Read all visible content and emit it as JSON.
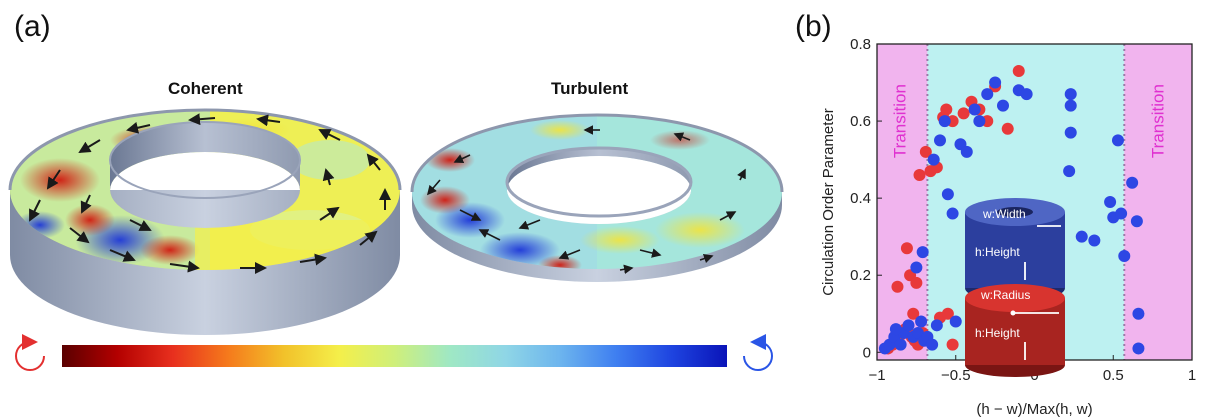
{
  "panel_a": {
    "label": "(a)",
    "coherent_title": "Coherent",
    "turbulent_title": "Turbulent",
    "colorbar_stops": [
      "#5a0000",
      "#b30000",
      "#e8301e",
      "#f57a1c",
      "#f2c12a",
      "#f4ef4a",
      "#cfef7a",
      "#9fe8c4",
      "#8fd6e6",
      "#6cb4ee",
      "#3f7ff0",
      "#1e44e0",
      "#0a14b8"
    ],
    "ccw_arrow_color": "#e33030",
    "cw_arrow_color": "#2a55e6"
  },
  "panel_b": {
    "label": "(b)",
    "inset_disk": {
      "w_label": "w:Width",
      "h_label": "h:Height",
      "color": "#2c3f9e"
    },
    "inset_cylinder": {
      "w_label": "w:Radius",
      "h_label": "h:Height",
      "color": "#d8342f"
    }
  },
  "chart_data": {
    "type": "scatter",
    "xlabel": "(h − w)/Max(h, w)",
    "ylabel": "Circulation Order Parameter",
    "xlim": [
      -1,
      1
    ],
    "ylim": [
      -0.02,
      0.8
    ],
    "x_ticks": [
      -1,
      -0.5,
      0,
      0.5,
      1
    ],
    "x_tick_labels": [
      "−1",
      "−0.5",
      "0",
      "0.5",
      "1"
    ],
    "y_ticks": [
      0,
      0.2,
      0.4,
      0.6,
      0.8
    ],
    "y_tick_labels": [
      "0",
      "0.2",
      "0.4",
      "0.6",
      "0.8"
    ],
    "annotations": [
      {
        "text": "Transition",
        "x": -0.82,
        "y": 0.6
      },
      {
        "text": "Transition",
        "x": 0.82,
        "y": 0.6
      }
    ],
    "transition_lines": [
      -0.68,
      0.57
    ],
    "regions": [
      {
        "from": -1,
        "to": -0.68,
        "color": "#f1b4ee"
      },
      {
        "from": -0.68,
        "to": 0.57,
        "color": "#bdf1f1"
      },
      {
        "from": 0.57,
        "to": 1,
        "color": "#f1b4ee"
      }
    ],
    "series": [
      {
        "color": "#e8393a",
        "points": [
          [
            -0.93,
            0.01
          ],
          [
            -0.91,
            0.02
          ],
          [
            -0.88,
            0.03
          ],
          [
            -0.86,
            0.04
          ],
          [
            -0.84,
            0.05
          ],
          [
            -0.82,
            0.06
          ],
          [
            -0.8,
            0.05
          ],
          [
            -0.78,
            0.04
          ],
          [
            -0.76,
            0.03
          ],
          [
            -0.74,
            0.02
          ],
          [
            -0.87,
            0.17
          ],
          [
            -0.81,
            0.27
          ],
          [
            -0.79,
            0.2
          ],
          [
            -0.75,
            0.18
          ],
          [
            -0.73,
            0.46
          ],
          [
            -0.69,
            0.52
          ],
          [
            -0.66,
            0.47
          ],
          [
            -0.62,
            0.48
          ],
          [
            -0.58,
            0.61
          ],
          [
            -0.56,
            0.63
          ],
          [
            -0.52,
            0.6
          ],
          [
            -0.45,
            0.62
          ],
          [
            -0.4,
            0.65
          ],
          [
            -0.35,
            0.63
          ],
          [
            -0.3,
            0.6
          ],
          [
            -0.25,
            0.69
          ],
          [
            -0.17,
            0.58
          ],
          [
            -0.1,
            0.73
          ],
          [
            -0.9,
            0.02
          ],
          [
            -0.77,
            0.1
          ],
          [
            -0.71,
            0.05
          ],
          [
            -0.6,
            0.09
          ],
          [
            -0.55,
            0.1
          ],
          [
            -0.52,
            0.02
          ]
        ]
      },
      {
        "color": "#2d47e4",
        "points": [
          [
            -0.95,
            0.01
          ],
          [
            -0.92,
            0.02
          ],
          [
            -0.89,
            0.04
          ],
          [
            -0.85,
            0.02
          ],
          [
            -0.83,
            0.05
          ],
          [
            -0.8,
            0.07
          ],
          [
            -0.77,
            0.04
          ],
          [
            -0.74,
            0.05
          ],
          [
            -0.72,
            0.08
          ],
          [
            -0.7,
            0.03
          ],
          [
            -0.68,
            0.04
          ],
          [
            -0.75,
            0.22
          ],
          [
            -0.71,
            0.26
          ],
          [
            -0.64,
            0.5
          ],
          [
            -0.6,
            0.55
          ],
          [
            -0.57,
            0.6
          ],
          [
            -0.55,
            0.41
          ],
          [
            -0.52,
            0.36
          ],
          [
            -0.5,
            0.08
          ],
          [
            -0.47,
            0.54
          ],
          [
            -0.43,
            0.52
          ],
          [
            -0.38,
            0.63
          ],
          [
            -0.35,
            0.6
          ],
          [
            -0.3,
            0.67
          ],
          [
            -0.25,
            0.7
          ],
          [
            -0.2,
            0.64
          ],
          [
            -0.1,
            0.68
          ],
          [
            -0.05,
            0.67
          ],
          [
            0.23,
            0.67
          ],
          [
            0.23,
            0.64
          ],
          [
            0.23,
            0.57
          ],
          [
            0.22,
            0.47
          ],
          [
            0.3,
            0.3
          ],
          [
            0.38,
            0.29
          ],
          [
            0.48,
            0.39
          ],
          [
            0.5,
            0.35
          ],
          [
            0.53,
            0.55
          ],
          [
            0.55,
            0.36
          ],
          [
            0.57,
            0.25
          ],
          [
            0.62,
            0.44
          ],
          [
            0.65,
            0.34
          ],
          [
            0.66,
            0.1
          ],
          [
            0.66,
            0.01
          ],
          [
            -0.62,
            0.07
          ],
          [
            -0.88,
            0.06
          ],
          [
            -0.65,
            0.02
          ]
        ]
      }
    ]
  }
}
